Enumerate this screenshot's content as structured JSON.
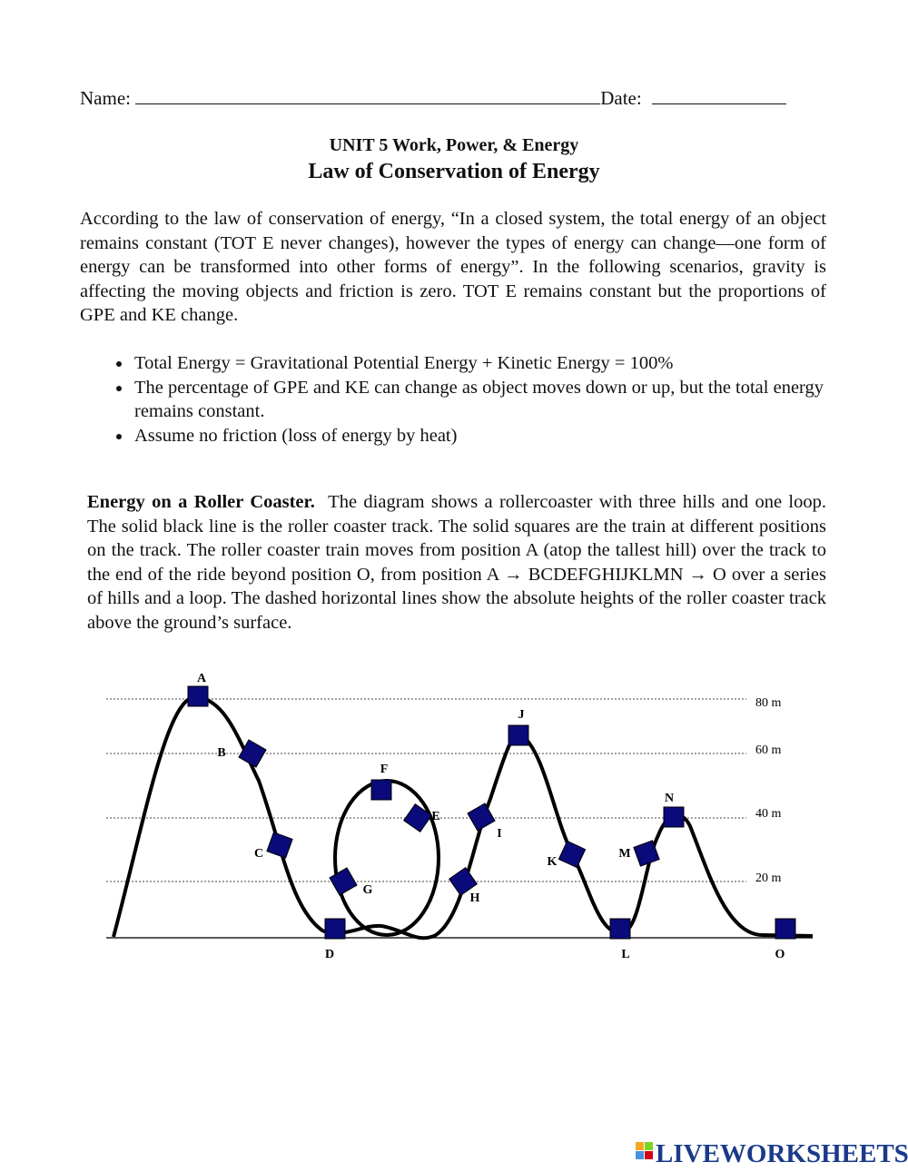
{
  "header": {
    "name_label": "Name:",
    "date_label": "Date:"
  },
  "title": {
    "unit": "UNIT 5 Work, Power, & Energy",
    "main": "Law of Conservation of Energy"
  },
  "intro": "According to the law of conservation of energy, “In a closed system, the total energy of an object remains constant (TOT E never changes), however the types of energy can change—one form of energy can be transformed into other forms of energy”.  In the following scenarios, gravity is affecting the moving objects and friction is zero.  TOT E remains constant but the proportions of GPE and KE change.",
  "bullets": [
    "Total Energy = Gravitational Potential Energy + Kinetic Energy = 100%",
    "The percentage of GPE and KE can change as object moves down or up, but the total energy remains constant.",
    "Assume no friction (loss of energy by heat)"
  ],
  "section": {
    "heading": "Energy on a Roller Coaster.",
    "text": "The diagram shows a rollercoaster with three hills and one loop.  The solid black line is the roller coaster track.  The solid squares are the train at different positions on the track.    The roller coaster train moves from position A (atop the tallest hill) over the track to the end of the ride beyond position O, from position A → BCDEFGHIJKLMN → O over a series of hills and a loop. The dashed horizontal lines show the absolute heights of the roller coaster track above the ground’s surface."
  },
  "diagram": {
    "height_labels": [
      "80 m",
      "60 m",
      "40 m",
      "20 m"
    ],
    "points": [
      "A",
      "B",
      "C",
      "D",
      "E",
      "F",
      "G",
      "H",
      "I",
      "J",
      "K",
      "L",
      "M",
      "N",
      "O"
    ]
  },
  "footer": {
    "brand": "LIVEWORKSHEETS"
  }
}
